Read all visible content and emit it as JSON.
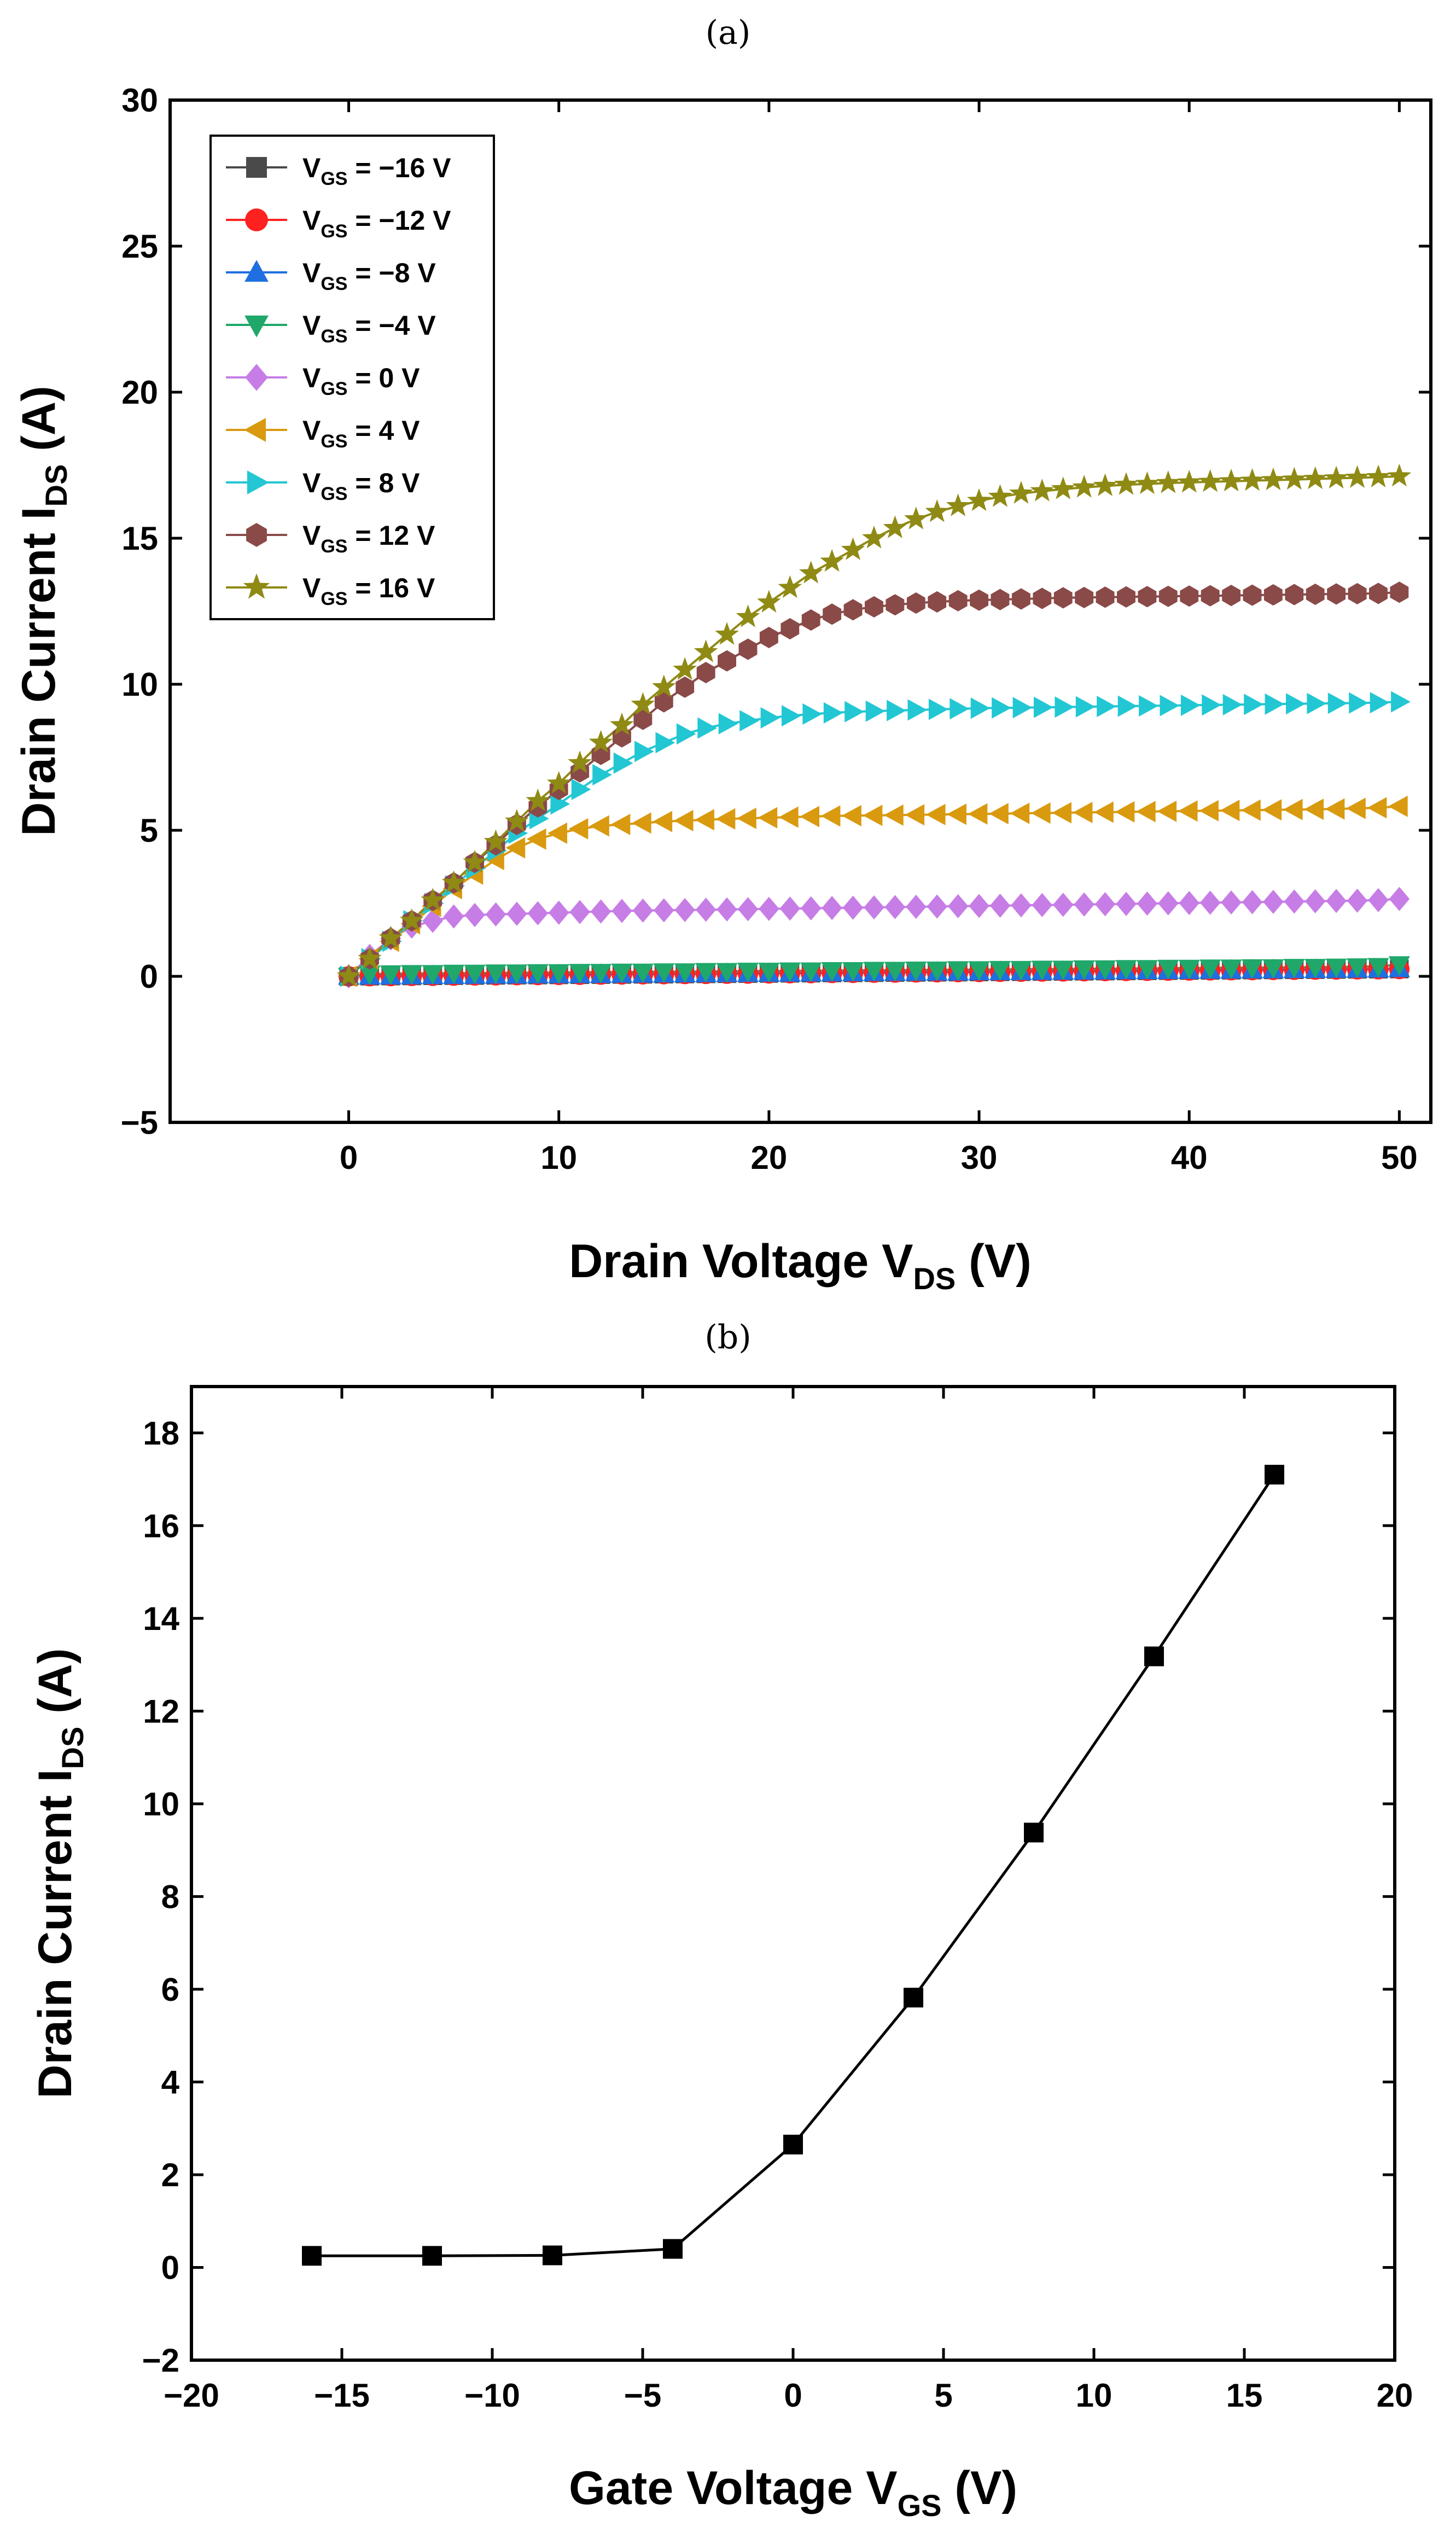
{
  "chart_data": [
    {
      "type": "line",
      "panel_label": "(a)",
      "xlabel": "Drain Voltage",
      "xlabel_symbol": "V",
      "xlabel_sub": "DS",
      "xlabel_unit": "(V)",
      "ylabel": "Drain Current",
      "ylabel_symbol": "I",
      "ylabel_sub": "DS",
      "ylabel_unit": "(A)",
      "xlim": [
        -8.5,
        51.5
      ],
      "ylim": [
        -5,
        30
      ],
      "xticks": [
        0,
        10,
        20,
        30,
        40,
        50
      ],
      "yticks": [
        -5,
        0,
        5,
        10,
        15,
        20,
        25,
        30
      ],
      "legend_position": "top-left",
      "x": [
        0,
        1,
        2,
        3,
        4,
        5,
        6,
        7,
        8,
        9,
        10,
        11,
        12,
        13,
        14,
        15,
        16,
        17,
        18,
        19,
        20,
        21,
        22,
        23,
        24,
        25,
        26,
        27,
        28,
        29,
        30,
        31,
        32,
        33,
        34,
        35,
        36,
        37,
        38,
        39,
        40,
        41,
        42,
        43,
        44,
        45,
        46,
        47,
        48,
        49,
        50
      ],
      "series": [
        {
          "name": "−16 V",
          "label_prefix": "V",
          "label_sub": "GS",
          "label_suffix": " = −16 V",
          "color": "#4a4a4a",
          "marker": "square",
          "values": [
            0,
            0.005,
            0.01,
            0.015,
            0.02,
            0.025,
            0.03,
            0.035,
            0.04,
            0.045,
            0.05,
            0.055,
            0.06,
            0.065,
            0.07,
            0.075,
            0.08,
            0.085,
            0.09,
            0.095,
            0.1,
            0.105,
            0.11,
            0.115,
            0.12,
            0.125,
            0.13,
            0.135,
            0.14,
            0.145,
            0.15,
            0.155,
            0.16,
            0.165,
            0.17,
            0.175,
            0.18,
            0.185,
            0.19,
            0.195,
            0.2,
            0.205,
            0.21,
            0.215,
            0.22,
            0.225,
            0.23,
            0.235,
            0.24,
            0.245,
            0.25
          ]
        },
        {
          "name": "−12 V",
          "label_prefix": "V",
          "label_sub": "GS",
          "label_suffix": " = −12 V",
          "color": "#ff2020",
          "marker": "circle",
          "values": [
            0,
            0.005,
            0.01,
            0.015,
            0.02,
            0.025,
            0.03,
            0.035,
            0.04,
            0.045,
            0.05,
            0.055,
            0.06,
            0.065,
            0.07,
            0.075,
            0.08,
            0.085,
            0.09,
            0.095,
            0.1,
            0.105,
            0.11,
            0.115,
            0.12,
            0.125,
            0.13,
            0.135,
            0.14,
            0.145,
            0.15,
            0.155,
            0.16,
            0.165,
            0.17,
            0.175,
            0.18,
            0.185,
            0.19,
            0.195,
            0.2,
            0.205,
            0.21,
            0.215,
            0.22,
            0.225,
            0.23,
            0.235,
            0.24,
            0.245,
            0.25
          ]
        },
        {
          "name": "−8 V",
          "label_prefix": "V",
          "label_sub": "GS",
          "label_suffix": " = −8 V",
          "color": "#1f6fe0",
          "marker": "triangle-up",
          "values": [
            0,
            0.005,
            0.01,
            0.015,
            0.02,
            0.025,
            0.03,
            0.035,
            0.04,
            0.045,
            0.05,
            0.055,
            0.06,
            0.065,
            0.07,
            0.075,
            0.08,
            0.085,
            0.09,
            0.095,
            0.1,
            0.105,
            0.11,
            0.115,
            0.12,
            0.125,
            0.13,
            0.135,
            0.14,
            0.145,
            0.15,
            0.155,
            0.16,
            0.165,
            0.17,
            0.175,
            0.18,
            0.185,
            0.19,
            0.195,
            0.2,
            0.205,
            0.21,
            0.215,
            0.22,
            0.225,
            0.23,
            0.235,
            0.24,
            0.245,
            0.26
          ]
        },
        {
          "name": "−4 V",
          "label_prefix": "V",
          "label_sub": "GS",
          "label_suffix": " = −4 V",
          "color": "#1fa86a",
          "marker": "triangle-down",
          "values": [
            0,
            0.08,
            0.09,
            0.1,
            0.1,
            0.11,
            0.11,
            0.12,
            0.12,
            0.13,
            0.13,
            0.14,
            0.14,
            0.15,
            0.15,
            0.16,
            0.16,
            0.17,
            0.17,
            0.18,
            0.18,
            0.19,
            0.19,
            0.2,
            0.2,
            0.21,
            0.21,
            0.22,
            0.22,
            0.23,
            0.23,
            0.24,
            0.24,
            0.25,
            0.25,
            0.26,
            0.26,
            0.27,
            0.27,
            0.28,
            0.28,
            0.29,
            0.29,
            0.3,
            0.3,
            0.31,
            0.31,
            0.32,
            0.33,
            0.34,
            0.4
          ]
        },
        {
          "name": "0 V",
          "label_prefix": "V",
          "label_sub": "GS",
          "label_suffix": " = 0 V",
          "color": "#c77de6",
          "marker": "diamond",
          "values": [
            0,
            0.7,
            1.3,
            1.7,
            1.9,
            2.05,
            2.1,
            2.12,
            2.14,
            2.16,
            2.18,
            2.2,
            2.22,
            2.24,
            2.25,
            2.26,
            2.27,
            2.28,
            2.29,
            2.3,
            2.31,
            2.32,
            2.33,
            2.34,
            2.35,
            2.36,
            2.37,
            2.38,
            2.39,
            2.4,
            2.41,
            2.42,
            2.43,
            2.44,
            2.45,
            2.46,
            2.47,
            2.48,
            2.49,
            2.5,
            2.51,
            2.52,
            2.53,
            2.54,
            2.55,
            2.56,
            2.57,
            2.58,
            2.59,
            2.61,
            2.65
          ]
        },
        {
          "name": "4 V",
          "label_prefix": "V",
          "label_sub": "GS",
          "label_suffix": " = 4 V",
          "color": "#d99a10",
          "marker": "triangle-left",
          "values": [
            0,
            0.6,
            1.2,
            1.8,
            2.4,
            3,
            3.5,
            4,
            4.4,
            4.7,
            4.9,
            5.05,
            5.15,
            5.2,
            5.25,
            5.3,
            5.33,
            5.36,
            5.39,
            5.41,
            5.43,
            5.45,
            5.47,
            5.49,
            5.5,
            5.51,
            5.52,
            5.53,
            5.54,
            5.55,
            5.56,
            5.57,
            5.58,
            5.59,
            5.6,
            5.61,
            5.62,
            5.63,
            5.64,
            5.65,
            5.66,
            5.67,
            5.68,
            5.69,
            5.7,
            5.71,
            5.72,
            5.73,
            5.75,
            5.77,
            5.82
          ]
        },
        {
          "name": "8 V",
          "label_prefix": "V",
          "label_sub": "GS",
          "label_suffix": " = 8 V",
          "color": "#22c7d3",
          "marker": "triangle-right",
          "values": [
            0,
            0.6,
            1.2,
            1.9,
            2.5,
            3.1,
            3.7,
            4.3,
            4.9,
            5.4,
            5.9,
            6.4,
            6.9,
            7.3,
            7.7,
            8,
            8.3,
            8.5,
            8.65,
            8.75,
            8.85,
            8.92,
            8.98,
            9.02,
            9.06,
            9.08,
            9.1,
            9.12,
            9.14,
            9.16,
            9.18,
            9.19,
            9.2,
            9.21,
            9.22,
            9.23,
            9.24,
            9.25,
            9.26,
            9.27,
            9.28,
            9.29,
            9.3,
            9.31,
            9.32,
            9.33,
            9.34,
            9.35,
            9.36,
            9.37,
            9.4
          ]
        },
        {
          "name": "12 V",
          "label_prefix": "V",
          "label_sub": "GS",
          "label_suffix": " = 12 V",
          "color": "#8a4a48",
          "marker": "hexagon",
          "values": [
            0,
            0.6,
            1.3,
            1.9,
            2.6,
            3.2,
            3.9,
            4.5,
            5.2,
            5.8,
            6.4,
            7,
            7.6,
            8.2,
            8.8,
            9.4,
            9.9,
            10.4,
            10.8,
            11.2,
            11.6,
            11.9,
            12.2,
            12.4,
            12.55,
            12.65,
            12.72,
            12.78,
            12.82,
            12.86,
            12.88,
            12.9,
            12.92,
            12.94,
            12.96,
            12.97,
            12.98,
            12.99,
            13,
            13.01,
            13.02,
            13.03,
            13.04,
            13.05,
            13.06,
            13.07,
            13.08,
            13.09,
            13.1,
            13.11,
            13.15
          ]
        },
        {
          "name": "16 V",
          "label_prefix": "V",
          "label_sub": "GS",
          "label_suffix": " = 16 V",
          "color": "#8f8a14",
          "marker": "star",
          "values": [
            0,
            0.6,
            1.3,
            1.9,
            2.6,
            3.2,
            3.9,
            4.6,
            5.3,
            6,
            6.6,
            7.3,
            8,
            8.6,
            9.3,
            9.9,
            10.5,
            11.1,
            11.7,
            12.3,
            12.8,
            13.3,
            13.8,
            14.2,
            14.6,
            15,
            15.35,
            15.65,
            15.9,
            16.1,
            16.28,
            16.42,
            16.53,
            16.61,
            16.68,
            16.74,
            16.79,
            16.83,
            16.86,
            16.89,
            16.91,
            16.93,
            16.95,
            16.97,
            16.99,
            17.01,
            17.03,
            17.05,
            17.07,
            17.09,
            17.12
          ]
        }
      ]
    },
    {
      "type": "line",
      "panel_label": "(b)",
      "xlabel": "Gate Voltage",
      "xlabel_symbol": "V",
      "xlabel_sub": "GS",
      "xlabel_unit": "(V)",
      "ylabel": "Drain Current",
      "ylabel_symbol": "I",
      "ylabel_sub": "DS",
      "ylabel_unit": "(A)",
      "xlim": [
        -20,
        20
      ],
      "ylim": [
        -2,
        19
      ],
      "xticks": [
        -20,
        -15,
        -10,
        -5,
        0,
        5,
        10,
        15,
        20
      ],
      "yticks": [
        -2,
        0,
        2,
        4,
        6,
        8,
        10,
        12,
        14,
        16,
        18
      ],
      "series": [
        {
          "name": "I_DS",
          "color": "#000000",
          "marker": "square",
          "x": [
            -16,
            -12,
            -8,
            -4,
            0,
            4,
            8,
            12,
            16
          ],
          "values": [
            0.25,
            0.25,
            0.26,
            0.4,
            2.65,
            5.82,
            9.38,
            13.18,
            17.1
          ]
        }
      ]
    }
  ]
}
